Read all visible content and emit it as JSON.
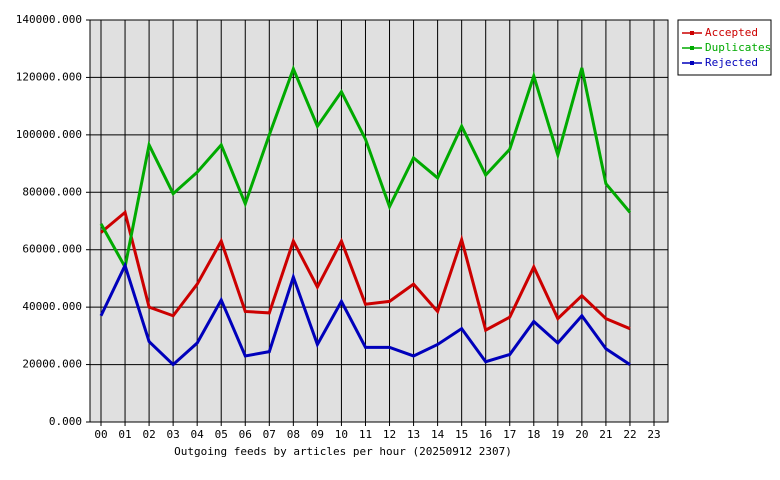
{
  "chart_data": {
    "type": "line",
    "title": "Outgoing feeds by articles per hour (20250912 2307)",
    "categories": [
      "00",
      "01",
      "02",
      "03",
      "04",
      "05",
      "06",
      "07",
      "08",
      "09",
      "10",
      "11",
      "12",
      "13",
      "14",
      "15",
      "16",
      "17",
      "18",
      "19",
      "20",
      "21",
      "22",
      "23"
    ],
    "series": [
      {
        "name": "Accepted",
        "color": "#cc0000",
        "values": [
          66000,
          73000,
          40000,
          37000,
          48000,
          63000,
          38500,
          38000,
          63000,
          47000,
          63000,
          41000,
          42000,
          48000,
          38500,
          63500,
          32000,
          36500,
          54000,
          36000,
          44000,
          36000,
          32500,
          null
        ]
      },
      {
        "name": "Duplicates",
        "color": "#00aa00",
        "values": [
          69000,
          54000,
          96500,
          79500,
          87000,
          96500,
          76000,
          100000,
          123000,
          103000,
          115000,
          98500,
          75000,
          92000,
          85000,
          103000,
          86000,
          95000,
          120500,
          93000,
          123300,
          83000,
          73000,
          null
        ]
      },
      {
        "name": "Rejected",
        "color": "#0000bb",
        "values": [
          37000,
          54500,
          28000,
          20000,
          27500,
          42500,
          23000,
          24500,
          50500,
          27000,
          42000,
          26000,
          26000,
          23000,
          27000,
          32500,
          21000,
          23500,
          35000,
          27500,
          37000,
          25500,
          20000,
          null
        ]
      }
    ],
    "ylim": [
      0,
      140000
    ],
    "yticks": [
      {
        "value": 0,
        "label": "0.000"
      },
      {
        "value": 20000,
        "label": "20000.000"
      },
      {
        "value": 40000,
        "label": "40000.000"
      },
      {
        "value": 60000,
        "label": "60000.000"
      },
      {
        "value": 80000,
        "label": "80000.000"
      },
      {
        "value": 100000,
        "label": "100000.000"
      },
      {
        "value": 120000,
        "label": "120000.000"
      },
      {
        "value": 140000,
        "label": "140000.000"
      }
    ],
    "grid": true,
    "legend": "right"
  }
}
